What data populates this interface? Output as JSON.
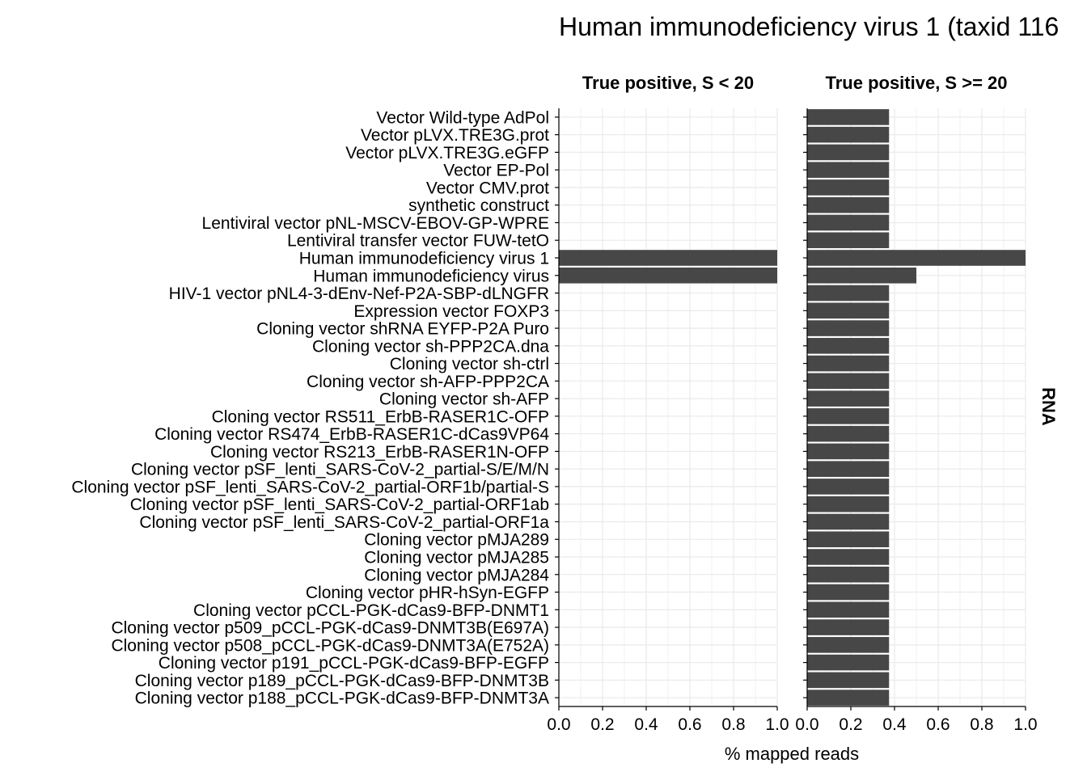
{
  "chart_data": {
    "type": "bar",
    "orientation": "horizontal",
    "title": "Human immunodeficiency virus 1 (taxid 116",
    "xlabel": "% mapped reads",
    "strip_label_right": "RNA",
    "xlim": [
      0,
      1
    ],
    "xticks": [
      "0.0",
      "0.2",
      "0.4",
      "0.6",
      "0.8",
      "1.0"
    ],
    "grid": true,
    "bar_color": "#474747",
    "categories": [
      "Vector Wild-type AdPol",
      "Vector pLVX.TRE3G.prot",
      "Vector pLVX.TRE3G.eGFP",
      "Vector EP-Pol",
      "Vector CMV.prot",
      "synthetic construct",
      "Lentiviral vector pNL-MSCV-EBOV-GP-WPRE",
      "Lentiviral transfer vector FUW-tetO",
      "Human immunodeficiency virus 1",
      "Human immunodeficiency virus",
      "HIV-1 vector pNL4-3-dEnv-Nef-P2A-SBP-dLNGFR",
      "Expression vector FOXP3",
      "Cloning vector shRNA EYFP-P2A Puro",
      "Cloning vector sh-PPP2CA.dna",
      "Cloning vector sh-ctrl",
      "Cloning vector sh-AFP-PPP2CA",
      "Cloning vector sh-AFP",
      "Cloning vector RS511_ErbB-RASER1C-OFP",
      "Cloning vector RS474_ErbB-RASER1C-dCas9VP64",
      "Cloning vector RS213_ErbB-RASER1N-OFP",
      "Cloning vector pSF_lenti_SARS-CoV-2_partial-S/E/M/N",
      "Cloning vector pSF_lenti_SARS-CoV-2_partial-ORF1b/partial-S",
      "Cloning vector pSF_lenti_SARS-CoV-2_partial-ORF1ab",
      "Cloning vector pSF_lenti_SARS-CoV-2_partial-ORF1a",
      "Cloning vector pMJA289",
      "Cloning vector pMJA285",
      "Cloning vector pMJA284",
      "Cloning vector pHR-hSyn-EGFP",
      "Cloning vector pCCL-PGK-dCas9-BFP-DNMT1",
      "Cloning vector p509_pCCL-PGK-dCas9-DNMT3B(E697A)",
      "Cloning vector p508_pCCL-PGK-dCas9-DNMT3A(E752A)",
      "Cloning vector p191_pCCL-PGK-dCas9-BFP-EGFP",
      "Cloning vector p189_pCCL-PGK-dCas9-BFP-DNMT3B",
      "Cloning vector p188_pCCL-PGK-dCas9-BFP-DNMT3A"
    ],
    "panels": [
      {
        "name": "True positive, S < 20",
        "values": [
          0,
          0,
          0,
          0,
          0,
          0,
          0,
          0,
          1.0,
          1.0,
          0,
          0,
          0,
          0,
          0,
          0,
          0,
          0,
          0,
          0,
          0,
          0,
          0,
          0,
          0,
          0,
          0,
          0,
          0,
          0,
          0,
          0,
          0,
          0
        ]
      },
      {
        "name": "True positive, S >= 20",
        "values": [
          0.375,
          0.375,
          0.375,
          0.375,
          0.375,
          0.375,
          0.375,
          0.375,
          1.0,
          0.5,
          0.375,
          0.375,
          0.375,
          0.375,
          0.375,
          0.375,
          0.375,
          0.375,
          0.375,
          0.375,
          0.375,
          0.375,
          0.375,
          0.375,
          0.375,
          0.375,
          0.375,
          0.375,
          0.375,
          0.375,
          0.375,
          0.375,
          0.375,
          0.375
        ]
      }
    ]
  }
}
